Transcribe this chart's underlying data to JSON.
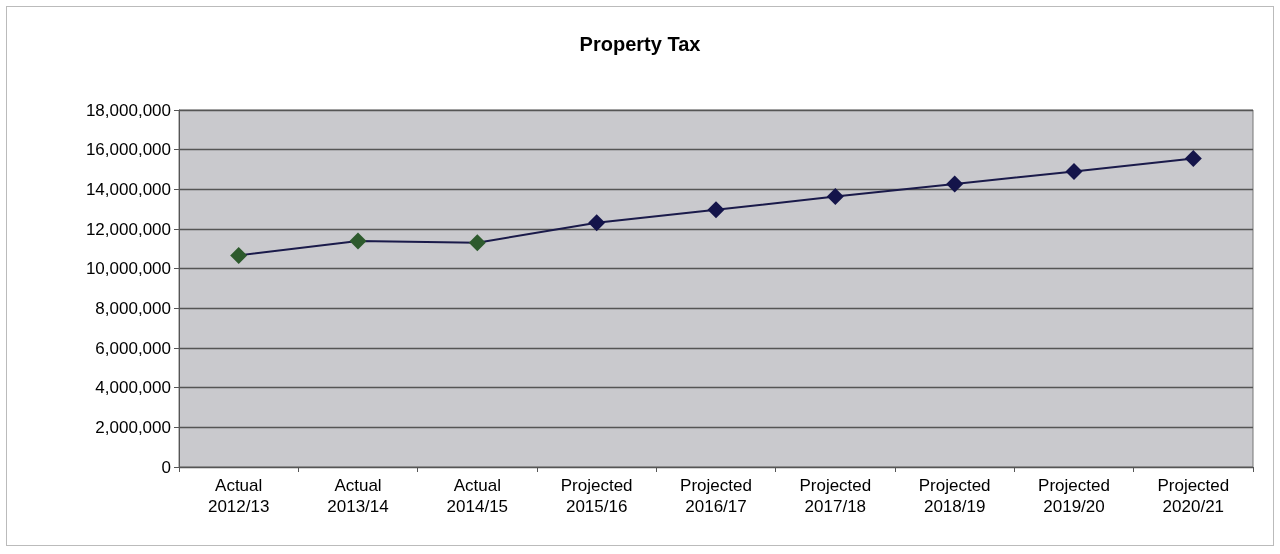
{
  "chart_data": {
    "type": "line",
    "title": "Property Tax",
    "categories": [
      "Actual\n2012/13",
      "Actual\n2013/14",
      "Actual\n2014/15",
      "Projected\n2015/16",
      "Projected\n2016/17",
      "Projected\n2017/18",
      "Projected\n2018/19",
      "Projected\n2019/20",
      "Projected\n2020/21"
    ],
    "series": [
      {
        "color": "#1a1a4a",
        "colors": [
          "#2d5a2d",
          "#2d5a2d",
          "#2d5a2d",
          "#14144a",
          "#14144a",
          "#14144a",
          "#14144a",
          "#14144a",
          "#14144a"
        ],
        "values": [
          10670000,
          11400000,
          11310000,
          12310000,
          12970000,
          13640000,
          14270000,
          14900000,
          15550000
        ]
      }
    ],
    "ylim": [
      0,
      18000000
    ],
    "yticks": [
      0,
      {
        "value": 2000000,
        "label": "2,000,000"
      },
      {
        "value": 4000000,
        "label": "4,000,000"
      },
      {
        "value": 6000000,
        "label": "6,000,000"
      },
      {
        "value": 8000000,
        "label": "8,000,000"
      },
      {
        "value": 10000000,
        "label": "10,000,000"
      },
      {
        "value": 12000000,
        "label": "12,000,000"
      },
      {
        "value": 14000000,
        "label": "14,000,000"
      },
      {
        "value": 16000000,
        "label": "16,000,000"
      },
      {
        "value": 18000000,
        "label": "18,000,000"
      }
    ],
    "grid": "y",
    "marker": "diamond",
    "line_style": "solid"
  }
}
